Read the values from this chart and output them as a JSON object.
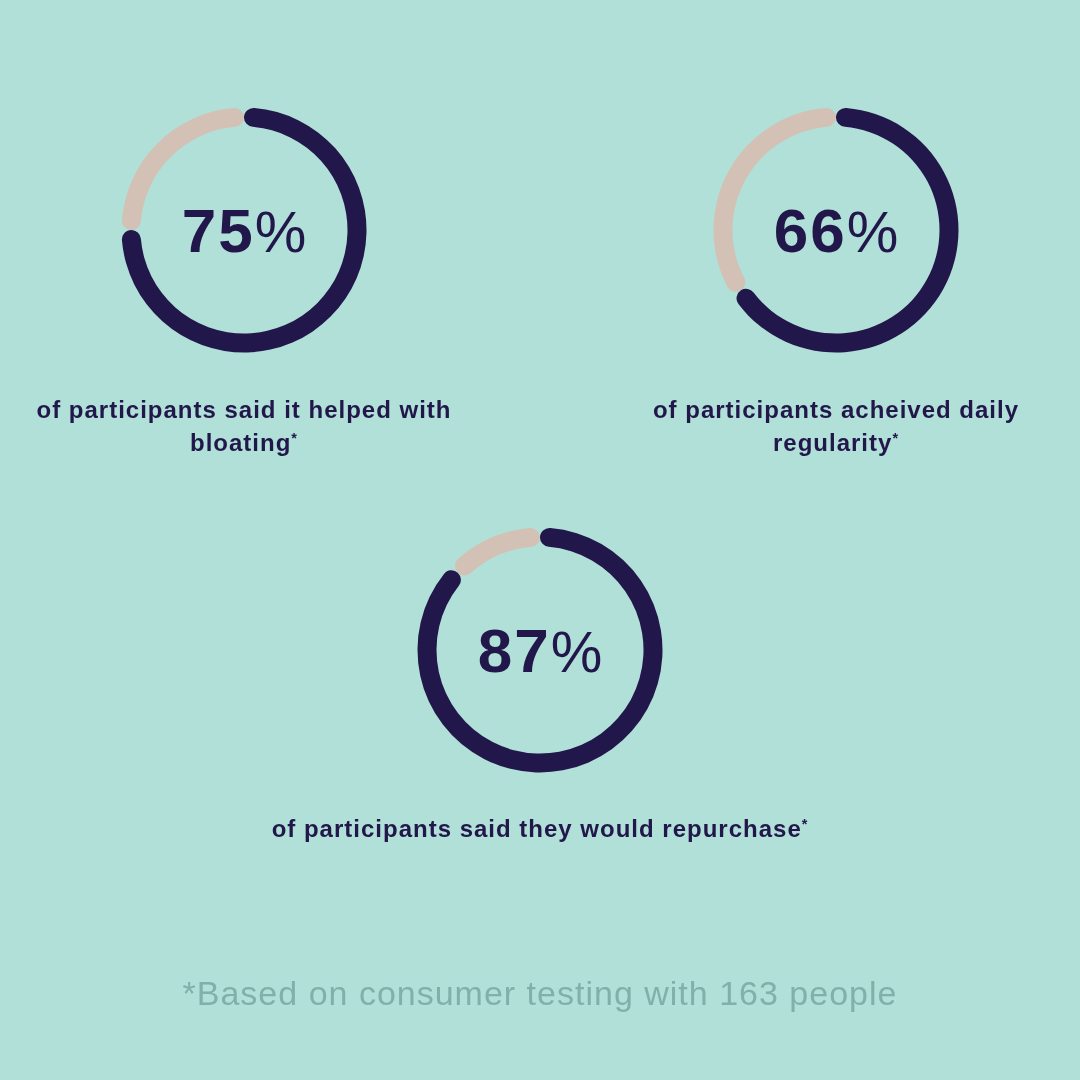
{
  "chart_data": [
    {
      "type": "donut",
      "title": "of participants said it helped with bloating$^{*}$",
      "categories": [
        null,
        null
      ],
      "values": [
        75,
        25
      ],
      "colors": [
        "#22174a",
        "#d4c1b5"
      ],
      "value_labels": [
        "75%",
        null
      ]
    },
    {
      "type": "donut",
      "title": "of participants acheived daily regularity$^{*}$",
      "categories": [
        null,
        null
      ],
      "values": [
        66,
        34
      ],
      "colors": [
        "#22174a",
        "#d4c1b5"
      ],
      "value_labels": [
        "66%",
        null
      ]
    },
    {
      "type": "donut",
      "title": "of participants said they would repurchase$^{*}$",
      "categories": [
        null,
        null
      ],
      "values": [
        87,
        13
      ],
      "colors": [
        "#22174a",
        "#d4c1b5"
      ],
      "value_labels": [
        "87%",
        null
      ],
      "annotations": [
        "*Based on consumer testing with 163 people"
      ]
    }
  ]
}
